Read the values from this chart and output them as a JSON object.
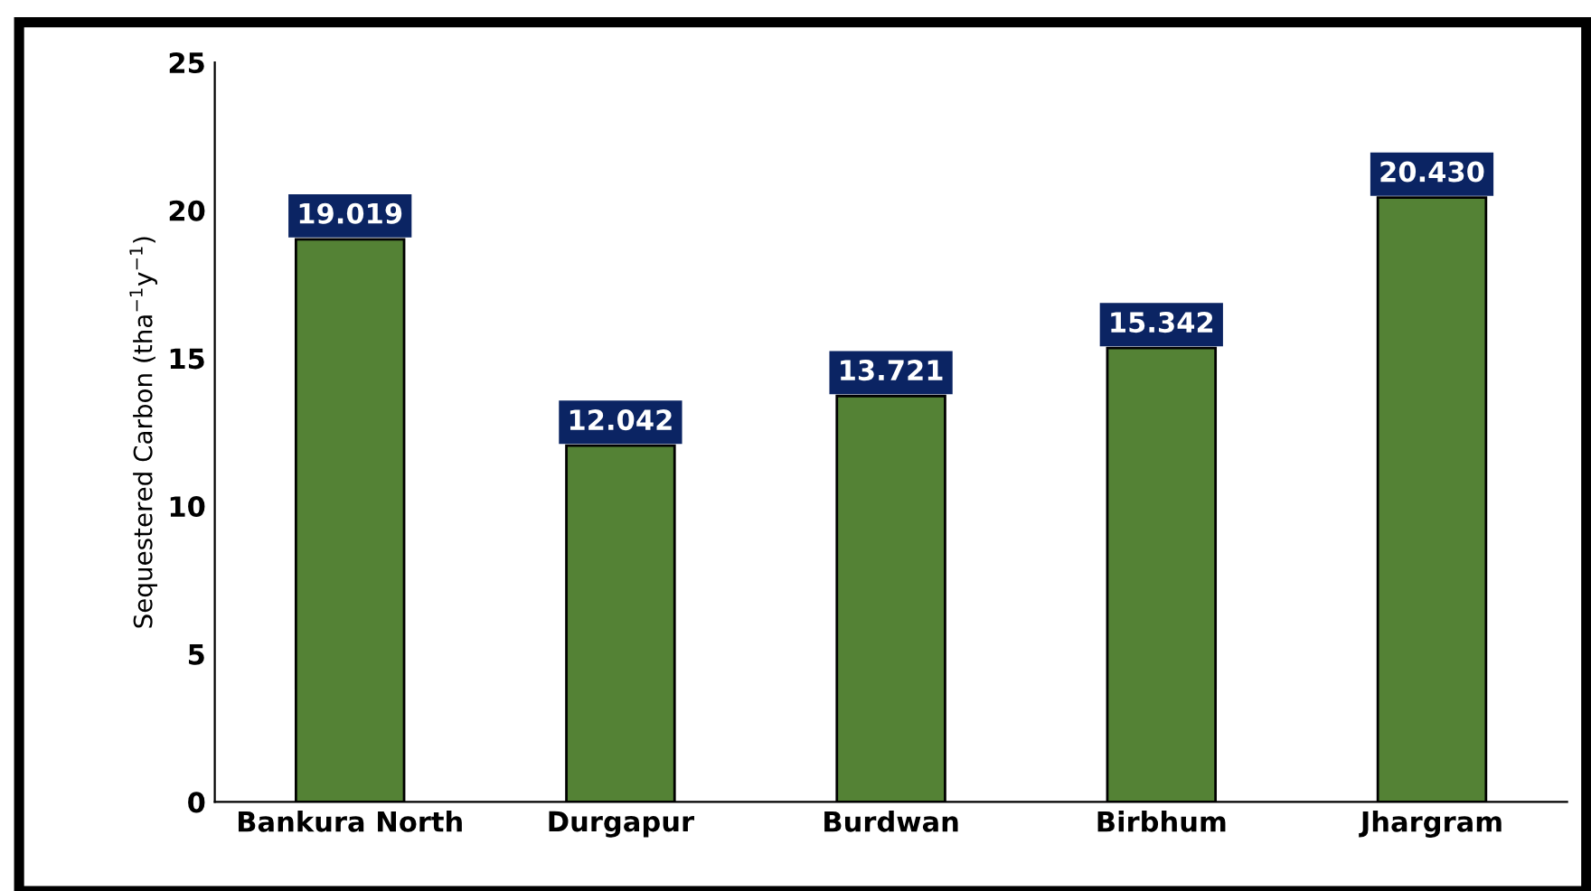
{
  "chart_data": {
    "type": "bar",
    "ylabel": "Sequestered Carbon (tha$^{−1}$y$^{−1}$)",
    "categories": [
      "Bankura North",
      "Durgapur",
      "Burdwan",
      "Birbhum",
      "Jhargram"
    ],
    "values": [
      19.019,
      12.042,
      13.721,
      15.342,
      20.43
    ],
    "value_labels": [
      "19.019",
      "12.042",
      "13.721",
      "15.342",
      "20.430"
    ],
    "color": "#548235",
    "ylim": [
      0,
      25
    ],
    "yticks": [
      0,
      5,
      10,
      15,
      20,
      25
    ],
    "grid": false,
    "legend": false
  }
}
